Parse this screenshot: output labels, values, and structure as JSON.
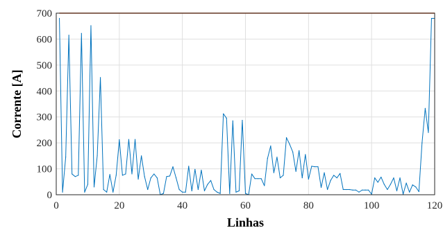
{
  "chart_data": {
    "type": "line",
    "xlabel": "Linhas",
    "ylabel": "Corrente [A]",
    "xlim": [
      0,
      120
    ],
    "ylim": [
      0,
      700
    ],
    "xticks": [
      0,
      20,
      40,
      60,
      80,
      100,
      120
    ],
    "yticks": [
      0,
      100,
      200,
      300,
      400,
      500,
      600,
      700
    ],
    "grid": true,
    "series": [
      {
        "color": "#0072BD",
        "x": [
          1,
          2,
          3,
          4,
          5,
          6,
          7,
          8,
          9,
          10,
          11,
          12,
          13,
          14,
          15,
          16,
          17,
          18,
          19,
          20,
          21,
          22,
          23,
          24,
          25,
          26,
          27,
          28,
          29,
          30,
          31,
          32,
          33,
          34,
          35,
          36,
          37,
          38,
          39,
          40,
          41,
          42,
          43,
          44,
          45,
          46,
          47,
          48,
          49,
          50,
          51,
          52,
          53,
          54,
          55,
          56,
          57,
          58,
          59,
          60,
          61,
          62,
          63,
          64,
          65,
          66,
          67,
          68,
          69,
          70,
          71,
          72,
          73,
          74,
          75,
          76,
          77,
          78,
          79,
          80,
          81,
          82,
          83,
          84,
          85,
          86,
          87,
          88,
          89,
          90,
          91,
          92,
          93,
          94,
          95,
          96,
          97,
          98,
          99,
          100,
          101,
          102,
          103,
          104,
          105,
          106,
          107,
          108,
          109,
          110,
          111,
          112,
          113,
          114,
          115,
          116,
          117,
          118,
          119,
          120
        ],
        "y": [
          680,
          10,
          145,
          615,
          80,
          70,
          75,
          622,
          10,
          40,
          652,
          30,
          150,
          452,
          20,
          10,
          78,
          10,
          75,
          212,
          75,
          80,
          213,
          80,
          213,
          60,
          150,
          70,
          20,
          65,
          80,
          65,
          0,
          5,
          70,
          72,
          108,
          65,
          20,
          10,
          10,
          110,
          15,
          98,
          20,
          95,
          15,
          40,
          55,
          20,
          10,
          5,
          312,
          295,
          5,
          285,
          10,
          15,
          287,
          5,
          0,
          80,
          62,
          62,
          62,
          35,
          140,
          188,
          85,
          145,
          65,
          75,
          220,
          195,
          165,
          90,
          170,
          65,
          155,
          60,
          110,
          108,
          108,
          28,
          85,
          20,
          55,
          75,
          65,
          82,
          20,
          20,
          20,
          18,
          18,
          10,
          18,
          18,
          18,
          2,
          65,
          48,
          68,
          40,
          20,
          40,
          65,
          15,
          65,
          2,
          45,
          10,
          38,
          30,
          12,
          200,
          333,
          240,
          680,
          680
        ]
      },
      {
        "color": "#D95319",
        "x": [
          1,
          120
        ],
        "y": [
          700,
          700
        ]
      }
    ]
  }
}
